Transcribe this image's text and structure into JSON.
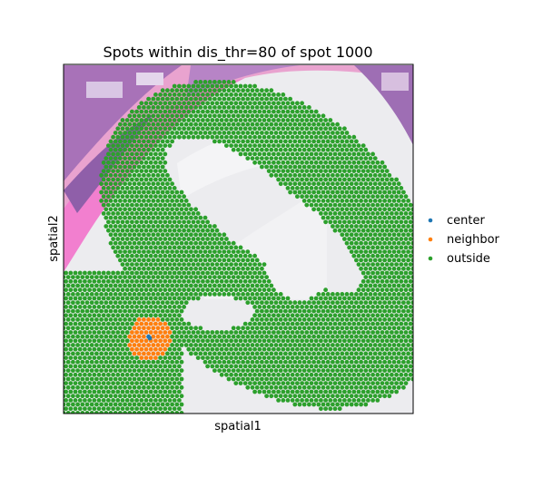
{
  "chart_data": {
    "type": "scatter",
    "title": "Spots within dis_thr=80 of spot 1000",
    "xlabel": "spatial1",
    "ylabel": "spatial2",
    "background": "H&E tissue histology image",
    "grid": false,
    "ticks": false,
    "legend_placement": "right",
    "series": [
      {
        "name": "center",
        "color": "#1f77b4"
      },
      {
        "name": "neighbor",
        "color": "#ff7f0e"
      },
      {
        "name": "outside",
        "color": "#2ca02c"
      }
    ]
  }
}
